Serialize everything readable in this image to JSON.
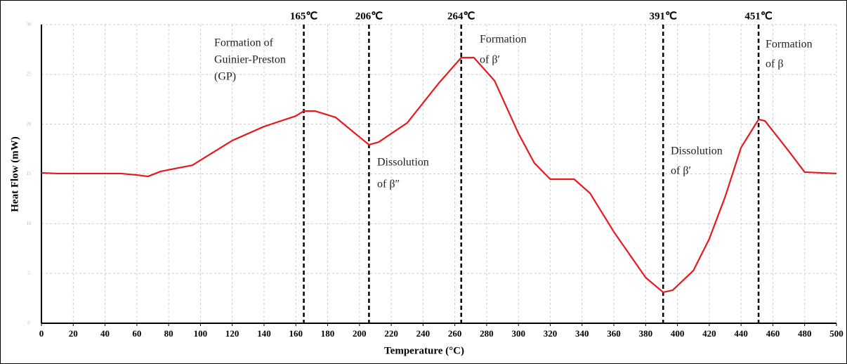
{
  "chart_data": {
    "type": "line",
    "x_label": "Temperature (°C)",
    "y_label": "Heat Flow (mW)",
    "x": [
      0,
      10,
      50,
      60,
      67,
      75,
      95,
      100,
      120,
      140,
      160,
      165,
      172,
      185,
      200,
      206,
      212,
      230,
      250,
      264,
      272,
      285,
      300,
      310,
      320,
      335,
      345,
      360,
      380,
      391,
      397,
      410,
      420,
      430,
      440,
      451,
      455,
      470,
      480,
      500
    ],
    "series": [
      {
        "color": "#e8191c",
        "values": [
          15.11,
          15.04,
          15.04,
          14.89,
          14.75,
          15.25,
          15.88,
          16.38,
          18.35,
          19.76,
          20.82,
          21.32,
          21.32,
          20.68,
          18.71,
          17.93,
          18.19,
          20.12,
          24.14,
          26.68,
          26.68,
          24.35,
          19.06,
          16.09,
          14.47,
          14.47,
          13.06,
          9.18,
          4.59,
          3.11,
          3.32,
          5.29,
          8.47,
          12.71,
          17.65,
          20.47,
          20.33,
          17.29,
          15.18,
          15.04
        ]
      }
    ],
    "xlim": [
      0,
      500
    ],
    "xticks": [
      0,
      20,
      40,
      60,
      80,
      100,
      120,
      140,
      160,
      180,
      200,
      220,
      240,
      260,
      280,
      300,
      320,
      340,
      360,
      380,
      400,
      420,
      440,
      460,
      480,
      500
    ],
    "ylim": [
      0,
      30
    ],
    "yticks": [
      0,
      5,
      10,
      15,
      20,
      25,
      30
    ],
    "grid": true,
    "markers": [
      {
        "x": 165,
        "label": "165℃"
      },
      {
        "x": 206,
        "label": "206℃"
      },
      {
        "x": 264,
        "label": "264℃"
      },
      {
        "x": 391,
        "label": "391℃"
      },
      {
        "x": 451,
        "label": "451℃"
      }
    ],
    "annotations": [
      [
        "Formation of",
        "Guinier-Preston",
        "(GP)"
      ],
      [
        "Formation",
        "of β′"
      ],
      [
        "Dissolution",
        "of β″"
      ],
      [
        "Dissolution",
        "of β′"
      ],
      [
        "Formation",
        "of β"
      ]
    ]
  }
}
